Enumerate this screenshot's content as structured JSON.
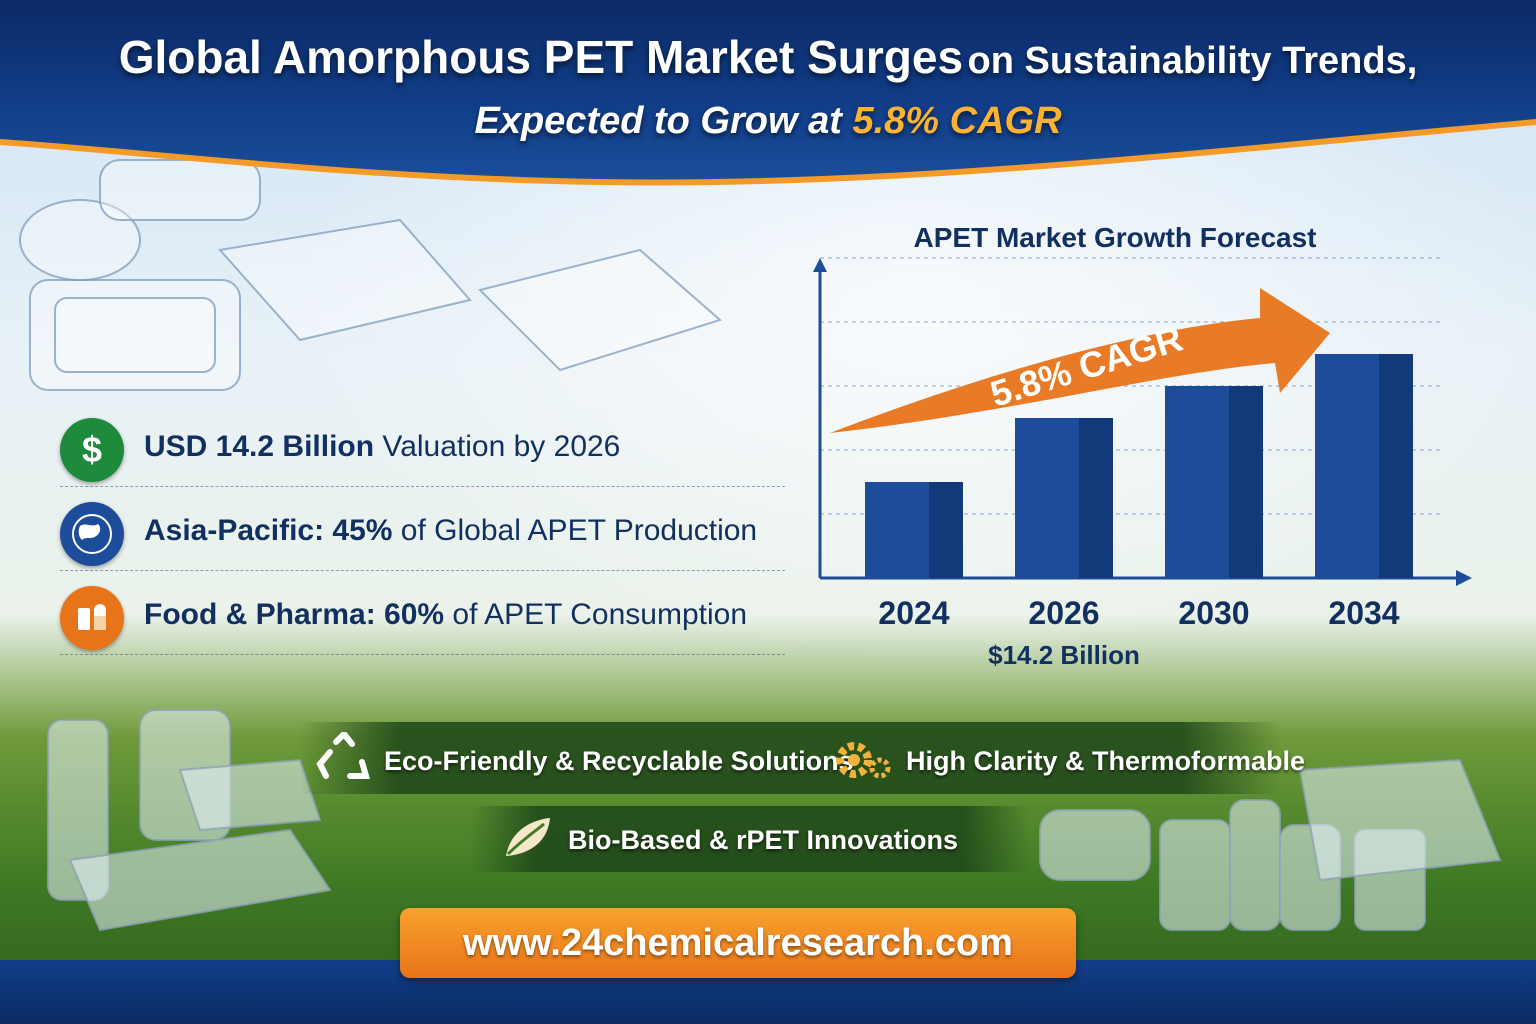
{
  "header": {
    "title_main": "Global Amorphous PET Market Surges",
    "title_tail": "on Sustainability Trends,",
    "subtitle_pre": "Expected to Grow at",
    "subtitle_highlight": "5.8% CAGR"
  },
  "stats": [
    {
      "bold": "USD 14.2 Billion",
      "rest": "Valuation by 2026",
      "icon": "dollar-icon",
      "color": "#1e8a3c"
    },
    {
      "bold": "Asia-Pacific: 45%",
      "rest": "of Global APET Production",
      "icon": "globe-icon",
      "color": "#1d4c9a"
    },
    {
      "bold": "Food & Pharma: 60%",
      "rest": "of APET Consumption",
      "icon": "food-pharma-icon",
      "color": "#e8741a"
    }
  ],
  "chart_data": {
    "type": "bar",
    "title": "APET Market Growth Forecast",
    "categories": [
      "2024",
      "2026",
      "2030",
      "2034"
    ],
    "values": [
      3,
      5,
      6,
      7
    ],
    "value_note": "relative bar heights; only 2026 value labeled",
    "data_labels": {
      "2026": "$14.2 Billion"
    },
    "annotation": "5.8% CAGR",
    "ylim": [
      0,
      10
    ],
    "grid": true,
    "bar_color": "#1d4c9a",
    "arrow_color": "#e8741a"
  },
  "features": {
    "f1": "Eco-Friendly & Recyclable Solutions",
    "f2": "High Clarity & Thermoformable",
    "f3": "Bio-Based & rPET Innovations"
  },
  "website": "www.24chemicalresearch.com",
  "colors": {
    "navy": "#0b2a66",
    "orange": "#e8741a",
    "gold": "#f9b233"
  }
}
